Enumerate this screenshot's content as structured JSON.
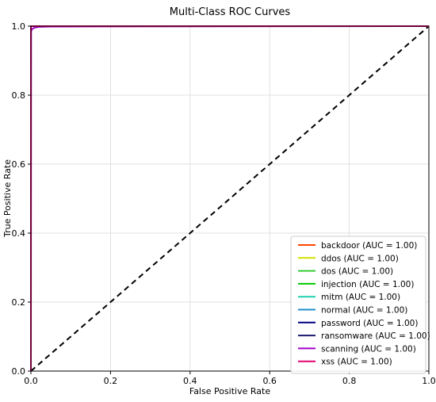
{
  "chart_data": {
    "type": "line",
    "title": "Multi-Class ROC Curves",
    "xlabel": "False Positive Rate",
    "ylabel": "True Positive Rate",
    "xlim": [
      0.0,
      1.0
    ],
    "ylim": [
      0.0,
      1.0
    ],
    "xticks": [
      "0.0",
      "0.2",
      "0.4",
      "0.6",
      "0.8",
      "1.0"
    ],
    "yticks": [
      "0.0",
      "0.2",
      "0.4",
      "0.6",
      "0.8",
      "1.0"
    ],
    "grid": true,
    "legend_position": "lower-right",
    "diagonal": {
      "x": [
        0,
        1
      ],
      "y": [
        0,
        1
      ],
      "style": "dashed",
      "color": "#000000"
    },
    "series": [
      {
        "name": "backdoor (AUC = 1.00)",
        "color": "#ff4500",
        "x": [
          0,
          0,
          1
        ],
        "y": [
          0,
          1,
          1
        ]
      },
      {
        "name": "ddos (AUC = 1.00)",
        "color": "#d4e000",
        "x": [
          0,
          0,
          1
        ],
        "y": [
          0,
          1,
          1
        ]
      },
      {
        "name": "dos (AUC = 1.00)",
        "color": "#32cd32",
        "x": [
          0,
          0,
          1
        ],
        "y": [
          0,
          1,
          1
        ]
      },
      {
        "name": "injection (AUC = 1.00)",
        "color": "#00c800",
        "x": [
          0,
          0,
          1
        ],
        "y": [
          0,
          1,
          1
        ]
      },
      {
        "name": "mitm (AUC = 1.00)",
        "color": "#20d0b0",
        "x": [
          0,
          0,
          1
        ],
        "y": [
          0,
          1,
          1
        ]
      },
      {
        "name": "normal (AUC = 1.00)",
        "color": "#1e90c8",
        "x": [
          0,
          0,
          1
        ],
        "y": [
          0,
          1,
          1
        ]
      },
      {
        "name": "password (AUC = 1.00)",
        "color": "#000080",
        "x": [
          0,
          0,
          1
        ],
        "y": [
          0,
          1,
          1
        ]
      },
      {
        "name": "ransomware (AUC = 1.00)",
        "color": "#1a1a6e",
        "x": [
          0,
          0,
          1
        ],
        "y": [
          0,
          1,
          1
        ]
      },
      {
        "name": "scanning (AUC = 1.00)",
        "color": "#a000c8",
        "x": [
          0,
          0.0005,
          0.003,
          0.01,
          0.02,
          0.05,
          1
        ],
        "y": [
          0,
          0.985,
          0.992,
          0.996,
          0.998,
          0.999,
          1
        ]
      },
      {
        "name": "xss (AUC = 1.00)",
        "color": "#e0006e",
        "x": [
          0,
          0,
          1
        ],
        "y": [
          0,
          1,
          1
        ]
      }
    ]
  }
}
